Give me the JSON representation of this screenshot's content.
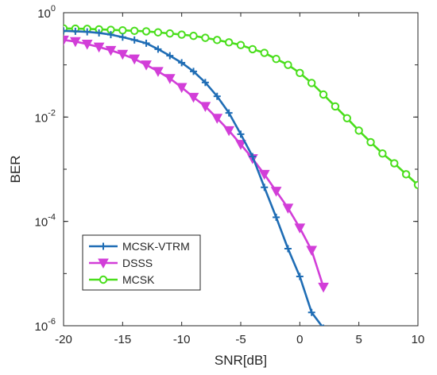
{
  "chart_data": {
    "type": "line",
    "xlabel": "SNR[dB]",
    "ylabel": "BER",
    "xlim": [
      -20,
      10
    ],
    "ylim": [
      1e-06,
      1
    ],
    "y_scale": "log",
    "x_ticks": [
      -20,
      -15,
      -10,
      -5,
      0,
      5,
      10
    ],
    "x_tick_labels": [
      "-20",
      "-15",
      "-10",
      "-5",
      "0",
      "5",
      "10"
    ],
    "y_ticks": [
      {
        "value": 1,
        "base": "10",
        "exp": "0"
      },
      {
        "value": 0.01,
        "base": "10",
        "exp": "-2"
      },
      {
        "value": 0.0001,
        "base": "10",
        "exp": "-4"
      },
      {
        "value": 1e-06,
        "base": "10",
        "exp": "-6"
      }
    ],
    "grid": false,
    "legend_position": "bottom-left",
    "series": [
      {
        "name": "MCSK-VTRM",
        "color": "#1f6db5",
        "marker": "plus",
        "x": [
          -20,
          -19,
          -18,
          -17,
          -16,
          -15,
          -14,
          -13,
          -12,
          -11,
          -10,
          -9,
          -8,
          -7,
          -6,
          -5,
          -4,
          -3,
          -2,
          -1,
          0,
          1,
          2
        ],
        "y": [
          0.45,
          0.44,
          0.43,
          0.41,
          0.38,
          0.34,
          0.3,
          0.26,
          0.2,
          0.15,
          0.11,
          0.075,
          0.046,
          0.025,
          0.012,
          0.0047,
          0.00175,
          0.00045,
          0.00012,
          3e-05,
          8.8e-06,
          1.8e-06,
          9e-07
        ]
      },
      {
        "name": "DSSS",
        "color": "#d23ed8",
        "marker": "triangle-down",
        "x": [
          -20,
          -19,
          -18,
          -17,
          -16,
          -15,
          -14,
          -13,
          -12,
          -11,
          -10,
          -9,
          -8,
          -7,
          -6,
          -5,
          -4,
          -3,
          -2,
          -1,
          0,
          1,
          2
        ],
        "y": [
          0.3,
          0.28,
          0.25,
          0.22,
          0.19,
          0.16,
          0.13,
          0.1,
          0.075,
          0.055,
          0.037,
          0.024,
          0.016,
          0.0095,
          0.0055,
          0.003,
          0.0016,
          0.0008,
          0.00038,
          0.00018,
          7.5e-05,
          2.8e-05,
          5.5e-06
        ]
      },
      {
        "name": "MCSK",
        "color": "#4ade1c",
        "marker": "circle",
        "x": [
          -20,
          -19,
          -18,
          -17,
          -16,
          -15,
          -14,
          -13,
          -12,
          -11,
          -10,
          -9,
          -8,
          -7,
          -6,
          -5,
          -4,
          -3,
          -2,
          -1,
          0,
          1,
          2,
          3,
          4,
          5,
          6,
          7,
          8,
          9,
          10
        ],
        "y": [
          0.5,
          0.495,
          0.49,
          0.48,
          0.47,
          0.46,
          0.45,
          0.44,
          0.42,
          0.4,
          0.38,
          0.36,
          0.33,
          0.3,
          0.27,
          0.24,
          0.2,
          0.17,
          0.13,
          0.1,
          0.07,
          0.045,
          0.027,
          0.016,
          0.0095,
          0.0055,
          0.0033,
          0.002,
          0.0013,
          0.0008,
          0.0005
        ]
      }
    ]
  }
}
